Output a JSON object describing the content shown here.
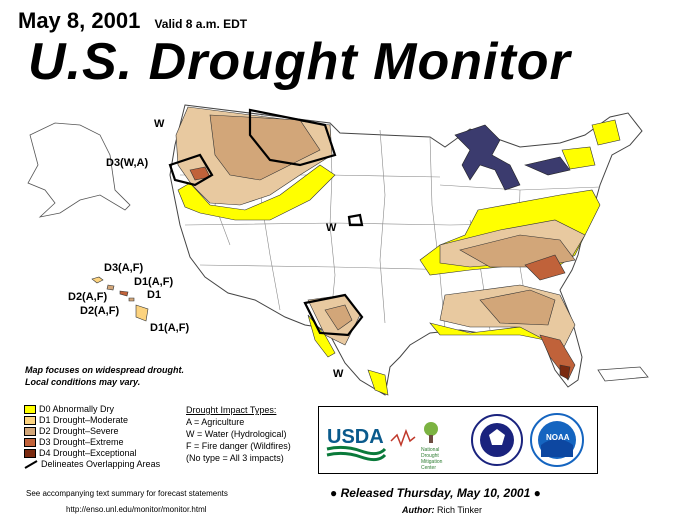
{
  "header": {
    "date": "May 8, 2001",
    "valid": "Valid 8 a.m. EDT",
    "title": "U.S. Drought Monitor"
  },
  "map_labels": {
    "w_northwest": "W",
    "d3_wa": "D3(W,A)",
    "w_central": "W",
    "w_texas": "W",
    "hi_d3af": "D3(A,F)",
    "hi_d1af_a": "D1(A,F)",
    "hi_d2af_a": "D2(A,F)",
    "hi_d1": "D1",
    "hi_d2af_b": "D2(A,F)",
    "hi_d1af_b": "D1(A,F)"
  },
  "note": {
    "line1": "Map focuses on widespread drought.",
    "line2": "Local conditions may vary."
  },
  "legend": {
    "items": [
      {
        "label": "D0 Abnormally Dry",
        "color": "#ffff00"
      },
      {
        "label": "D1 Drought–Moderate",
        "color": "#fcd37f"
      },
      {
        "label": "D2 Drought–Severe",
        "color": "#d2a679"
      },
      {
        "label": "D3 Drought–Extreme",
        "color": "#c0623a"
      },
      {
        "label": "D4 Drought–Exceptional",
        "color": "#7a2a10"
      }
    ],
    "overlap_label": "Delineates Overlapping Areas"
  },
  "impacts": {
    "heading": "Drought Impact Types:",
    "a": "A = Agriculture",
    "w": "W = Water (Hydrological)",
    "f": "F = Fire danger (Wildfires)",
    "none": "(No type = All 3 impacts)"
  },
  "logos": {
    "usda": "USDA",
    "ndmc_line1": "National",
    "ndmc_line2": "Drought",
    "ndmc_line3": "Mitigation",
    "ndmc_line4": "Center",
    "noaa": "NOAA"
  },
  "footer": {
    "released": "● Released Thursday, May 10, 2001 ●",
    "author_label": "Author:",
    "author_name": "Rich Tinker",
    "see_text": "See accompanying text summary for forecast statements",
    "url": "http://enso.unl.edu/monitor/monitor.html"
  }
}
